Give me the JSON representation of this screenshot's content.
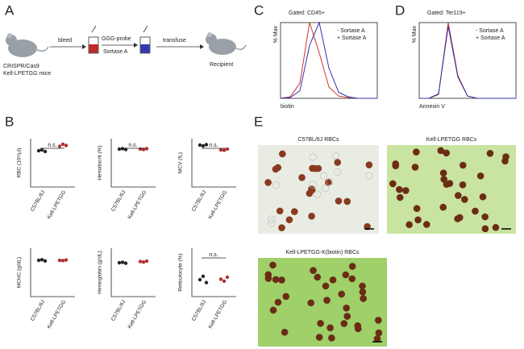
{
  "labels": {
    "a": "A",
    "b": "B",
    "c": "C",
    "d": "D",
    "e": "E"
  },
  "diagram": {
    "donor": [
      "CRISPR/Cas9",
      "Kell-LPETGG mice"
    ],
    "bleed": "bleed",
    "probe": "GGG-probe",
    "enzyme": "Sortase A",
    "transfuse": "transfuse",
    "recipient": "Recipient"
  },
  "chart_data": [
    {
      "type": "dot",
      "ylabel": "RBC (10⁶/µl)",
      "categories": [
        "C57BL/6J",
        "Kell-LPETGG"
      ],
      "values": [
        [
          9.0,
          9.2,
          8.8
        ],
        [
          10.1,
          10.6,
          10.3
        ]
      ],
      "colors": [
        "#222222",
        "#b03030"
      ],
      "ylim": [
        0,
        12
      ],
      "annotation": "n.s."
    },
    {
      "type": "dot",
      "ylabel": "Hematocrit (%)",
      "categories": [
        "C57BL/6J",
        "Kell-LPETGG"
      ],
      "values": [
        [
          47,
          47.5,
          46.5
        ],
        [
          47,
          46.5,
          47.5
        ]
      ],
      "colors": [
        "#222222",
        "#b03030"
      ],
      "ylim": [
        0,
        60
      ],
      "annotation": "n.s."
    },
    {
      "type": "dot",
      "ylabel": "MCV (fL)",
      "categories": [
        "C57BL/6J",
        "Kell-LPETGG"
      ],
      "values": [
        [
          52,
          51,
          52.5
        ],
        [
          46,
          45.5,
          47
        ]
      ],
      "colors": [
        "#222222",
        "#b03030"
      ],
      "ylim": [
        0,
        60
      ],
      "annotation": "n.s."
    },
    {
      "type": "dot",
      "ylabel": "MCHC (g/dL)",
      "categories": [
        "C57BL/6J",
        "Kell-LPETGG"
      ],
      "values": [
        [
          30,
          30.5,
          29.5
        ],
        [
          30,
          29.8,
          30.3
        ]
      ],
      "colors": [
        "#222222",
        "#b03030"
      ],
      "ylim": [
        0,
        40
      ],
      "annotation": ""
    },
    {
      "type": "dot",
      "ylabel": "Hemoglobin (g/dL)",
      "categories": [
        "C57BL/6J",
        "Kell-LPETGG"
      ],
      "values": [
        [
          14,
          14.2,
          13.8
        ],
        [
          14.5,
          14.3,
          14.7
        ]
      ],
      "colors": [
        "#222222",
        "#b03030"
      ],
      "ylim": [
        0,
        20
      ],
      "annotation": ""
    },
    {
      "type": "dot",
      "ylabel": "Reticulocyte (%)",
      "categories": [
        "C57BL/6J",
        "Kell-LPETGG"
      ],
      "values": [
        [
          3.5,
          4.2,
          2.9
        ],
        [
          3.6,
          3.2,
          4.0
        ]
      ],
      "colors": [
        "#222222",
        "#b03030"
      ],
      "ylim": [
        0,
        10
      ],
      "annotation": "n.s."
    },
    {
      "type": "line",
      "title": "Gated: CD45+",
      "xlabel": "biotin",
      "ylabel": "% Max",
      "x": [
        0,
        1,
        2,
        3,
        4,
        5,
        6,
        7,
        8,
        9,
        10
      ],
      "xlim": [
        0,
        10
      ],
      "ylim": [
        0,
        100
      ],
      "series": [
        {
          "name": "- Sortase A",
          "color": "#d03030",
          "values": [
            0,
            2,
            20,
            100,
            60,
            15,
            3,
            1,
            0,
            0,
            0
          ]
        },
        {
          "name": "+ Sortase A",
          "color": "#3030b0",
          "values": [
            0,
            1,
            10,
            70,
            100,
            40,
            8,
            2,
            0,
            0,
            0
          ]
        }
      ]
    },
    {
      "type": "line",
      "title": "Gated: Ter119+",
      "xlabel": "Annexin V",
      "ylabel": "% Max",
      "x": [
        0,
        1,
        2,
        3,
        4,
        5,
        6,
        7,
        8,
        9,
        10
      ],
      "xlim": [
        0,
        10
      ],
      "ylim": [
        0,
        100
      ],
      "series": [
        {
          "name": "- Sortase A",
          "color": "#d03030",
          "values": [
            0,
            0,
            5,
            100,
            30,
            3,
            0,
            0,
            0,
            0,
            0
          ]
        },
        {
          "name": "+ Sortase A",
          "color": "#3030b0",
          "values": [
            0,
            0,
            6,
            95,
            28,
            3,
            0,
            0,
            0,
            0,
            0
          ]
        }
      ]
    }
  ],
  "images": [
    {
      "title": "C57BL/6J RBCs"
    },
    {
      "title": "Kell-LPETGG RBCs"
    },
    {
      "title": "Kell-LPETGG-K(biotin) RBCs"
    }
  ]
}
